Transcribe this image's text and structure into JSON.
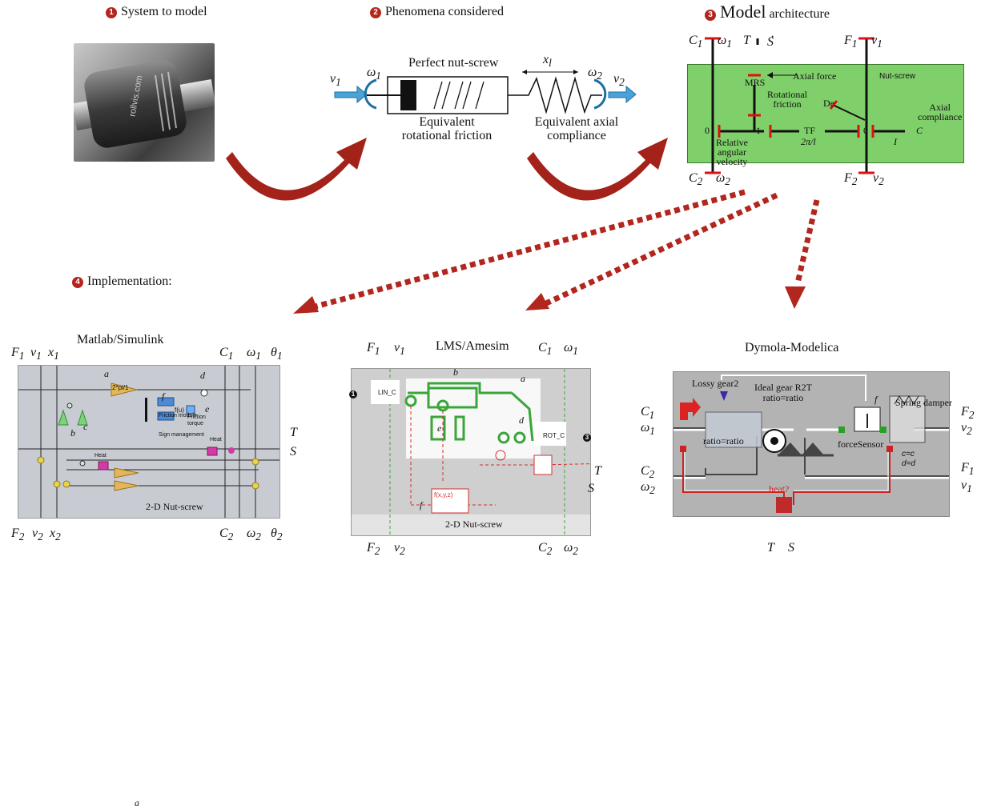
{
  "header": {
    "step1_num": "1",
    "step1_label": "System to model",
    "step2_num": "2",
    "step2_label": "Phenomena considered",
    "step3_num": "3",
    "step3_word1": "Model",
    "step3_word2": "architecture",
    "step4_num": "4",
    "step4_label": "Implementation:"
  },
  "photo": {
    "brand_text": "rollvis.com"
  },
  "phenomena": {
    "v1": "v",
    "v1_sub": "1",
    "w1": "ω",
    "w1_sub": "1",
    "perfect_nut_screw": "Perfect nut-screw",
    "xl": "x",
    "xl_sub": "l",
    "w2": "ω",
    "w2_sub": "2",
    "v2": "v",
    "v2_sub": "2",
    "eq_rot_friction_line1": "Equivalent",
    "eq_rot_friction_line2": "rotational friction",
    "eq_axial_line1": "Equivalent axial",
    "eq_axial_line2": "compliance"
  },
  "architecture": {
    "C1": "C",
    "C1_sub": "1",
    "w1": "ω",
    "w1_sub": "1",
    "T": "T",
    "S": "S",
    "F1": "F",
    "F1_sub": "1",
    "v1": "v",
    "v1_sub": "1",
    "MRS": "MRS",
    "axial_force": "Axial force",
    "nut_screw": "Nut-screw",
    "rot_friction_line1": "Rotational",
    "rot_friction_line2": "friction",
    "De": "De",
    "axial_compliance_line1": "Axial",
    "axial_compliance_line2": "compliance",
    "zero_left": "0",
    "one": "1",
    "TF": "TF",
    "TF_ratio": "2π/l",
    "zero_right": "0",
    "C": "C",
    "I": "I",
    "rel_line1": "Relative",
    "rel_line2": "angular",
    "rel_line3": "velocity",
    "C2": "C",
    "C2_sub": "2",
    "w2": "ω",
    "w2_sub": "2",
    "F2": "F",
    "F2_sub": "2",
    "v2": "v",
    "v2_sub": "2"
  },
  "simulink": {
    "title": "Matlab/Simulink",
    "F1": "F",
    "F1_sub": "1",
    "v1": "v",
    "v1_sub": "1",
    "x1": "x",
    "x1_sub": "1",
    "C1": "C",
    "C1_sub": "1",
    "w1": "ω",
    "w1_sub": "1",
    "th1": "θ",
    "th1_sub": "1",
    "F2": "F",
    "F2_sub": "2",
    "v2": "v",
    "v2_sub": "2",
    "x2": "x",
    "x2_sub": "2",
    "C2": "C",
    "C2_sub": "2",
    "w2": "ω",
    "w2_sub": "2",
    "th2": "θ",
    "th2_sub": "2",
    "T": "T",
    "S": "S",
    "gain_label": "2*pi/1",
    "a": "a",
    "d": "d",
    "f": "f",
    "e": "e",
    "b": "b",
    "c": "c",
    "a2": "a",
    "friction_module": "Friction module",
    "friction_torque_line1": "Friction",
    "friction_torque_line2": "torque",
    "sign_management": "Sign management",
    "heat1": "Heat",
    "heat2": "Heat",
    "fu": "f(u)",
    "caption": "2-D Nut-screw"
  },
  "amesim": {
    "title": "LMS/Amesim",
    "F1": "F",
    "F1_sub": "1",
    "v1": "v",
    "v1_sub": "1",
    "C1": "C",
    "C1_sub": "1",
    "w1": "ω",
    "w1_sub": "1",
    "F2": "F",
    "F2_sub": "2",
    "v2": "v",
    "v2_sub": "2",
    "C2": "C",
    "C2_sub": "2",
    "w2": "ω",
    "w2_sub": "2",
    "T": "T",
    "S": "S",
    "lin_c": "LIN_C",
    "rot_c": "ROT_C",
    "port1": "1",
    "port3": "3",
    "a": "a",
    "b": "b",
    "d": "d",
    "e": "e",
    "f": "f",
    "fxyz": "f(x,y,z)",
    "caption": "2-D Nut-screw"
  },
  "dymola": {
    "title": "Dymola-Modelica",
    "lossy_gear": "Lossy gear2",
    "ideal_gear_line1": "Ideal gear R2T",
    "ideal_gear_line2": "ratio=ratio",
    "ratio": "ratio=ratio",
    "f": "f",
    "force_sensor": "forceSensor",
    "spring_damper": "Spring damper",
    "c_eq": "c=c",
    "d_eq": "d=d",
    "heat": "heat?",
    "C1": "C",
    "C1_sub": "1",
    "w1": "ω",
    "w1_sub": "1",
    "C2": "C",
    "C2_sub": "2",
    "w2": "ω",
    "w2_sub": "2",
    "F2": "F",
    "F2_sub": "2",
    "v2": "v",
    "v2_sub": "2",
    "F1": "F",
    "F1_sub": "1",
    "v1": "v",
    "v1_sub": "1",
    "T": "T",
    "S": "S"
  },
  "colors": {
    "accent_red": "#b3261e",
    "arch_green": "#7fcf6a",
    "sim_green": "#3aa63a"
  }
}
